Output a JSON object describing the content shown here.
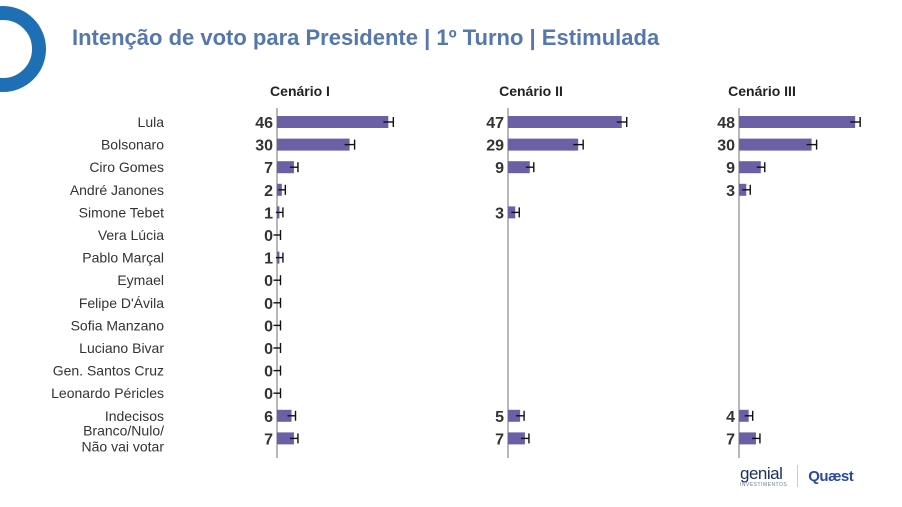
{
  "title": "Intenção de voto para Presidente | 1º Turno | Estimulada",
  "brand": {
    "logo1": "genial",
    "logo1_sub": "INVESTIMENTOS",
    "logo2": "Quæst",
    "title_color": "#5577ad",
    "bar_color": "#6b60a6",
    "logo_circle_color": "#1f6fb5"
  },
  "chart_data": {
    "type": "bar",
    "orientation": "horizontal",
    "categories": [
      "Lula",
      "Bolsonaro",
      "Ciro Gomes",
      "André Janones",
      "Simone Tebet",
      "Vera Lúcia",
      "Pablo Marçal",
      "Eymael",
      "Felipe D'Ávila",
      "Sofia Manzano",
      "Luciano Bivar",
      "Gen. Santos Cruz",
      "Leonardo Péricles",
      "Indecisos",
      "Branco/Nulo/\nNão vai votar"
    ],
    "series": [
      {
        "name": "Cenário I",
        "values": [
          46,
          30,
          7,
          2,
          1,
          0,
          1,
          0,
          0,
          0,
          0,
          0,
          0,
          6,
          7
        ]
      },
      {
        "name": "Cenário II",
        "values": [
          47,
          29,
          9,
          null,
          3,
          null,
          null,
          null,
          null,
          null,
          null,
          null,
          null,
          5,
          7
        ]
      },
      {
        "name": "Cenário III",
        "values": [
          48,
          30,
          9,
          3,
          null,
          null,
          null,
          null,
          null,
          null,
          null,
          null,
          null,
          4,
          7
        ]
      }
    ],
    "error_bars": true,
    "grid": false,
    "legend": "none"
  }
}
